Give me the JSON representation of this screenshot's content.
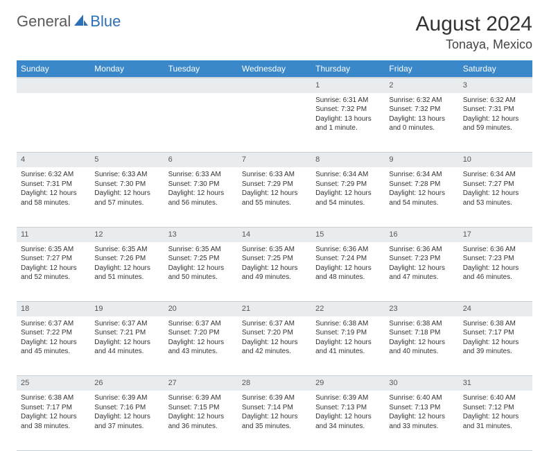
{
  "logo": {
    "text1": "General",
    "text2": "Blue"
  },
  "title": "August 2024",
  "location": "Tonaya, Mexico",
  "colors": {
    "header_bg": "#3a87c9",
    "header_text": "#ffffff",
    "daynum_bg": "#e9ecef",
    "border": "#c8cfd4",
    "logo_gray": "#5a5a5a",
    "logo_blue": "#2d6fb5",
    "page_bg": "#ffffff"
  },
  "day_headers": [
    "Sunday",
    "Monday",
    "Tuesday",
    "Wednesday",
    "Thursday",
    "Friday",
    "Saturday"
  ],
  "weeks": [
    [
      null,
      null,
      null,
      null,
      {
        "n": "1",
        "sr": "Sunrise: 6:31 AM",
        "ss": "Sunset: 7:32 PM",
        "dl": "Daylight: 13 hours and 1 minute."
      },
      {
        "n": "2",
        "sr": "Sunrise: 6:32 AM",
        "ss": "Sunset: 7:32 PM",
        "dl": "Daylight: 13 hours and 0 minutes."
      },
      {
        "n": "3",
        "sr": "Sunrise: 6:32 AM",
        "ss": "Sunset: 7:31 PM",
        "dl": "Daylight: 12 hours and 59 minutes."
      }
    ],
    [
      {
        "n": "4",
        "sr": "Sunrise: 6:32 AM",
        "ss": "Sunset: 7:31 PM",
        "dl": "Daylight: 12 hours and 58 minutes."
      },
      {
        "n": "5",
        "sr": "Sunrise: 6:33 AM",
        "ss": "Sunset: 7:30 PM",
        "dl": "Daylight: 12 hours and 57 minutes."
      },
      {
        "n": "6",
        "sr": "Sunrise: 6:33 AM",
        "ss": "Sunset: 7:30 PM",
        "dl": "Daylight: 12 hours and 56 minutes."
      },
      {
        "n": "7",
        "sr": "Sunrise: 6:33 AM",
        "ss": "Sunset: 7:29 PM",
        "dl": "Daylight: 12 hours and 55 minutes."
      },
      {
        "n": "8",
        "sr": "Sunrise: 6:34 AM",
        "ss": "Sunset: 7:29 PM",
        "dl": "Daylight: 12 hours and 54 minutes."
      },
      {
        "n": "9",
        "sr": "Sunrise: 6:34 AM",
        "ss": "Sunset: 7:28 PM",
        "dl": "Daylight: 12 hours and 54 minutes."
      },
      {
        "n": "10",
        "sr": "Sunrise: 6:34 AM",
        "ss": "Sunset: 7:27 PM",
        "dl": "Daylight: 12 hours and 53 minutes."
      }
    ],
    [
      {
        "n": "11",
        "sr": "Sunrise: 6:35 AM",
        "ss": "Sunset: 7:27 PM",
        "dl": "Daylight: 12 hours and 52 minutes."
      },
      {
        "n": "12",
        "sr": "Sunrise: 6:35 AM",
        "ss": "Sunset: 7:26 PM",
        "dl": "Daylight: 12 hours and 51 minutes."
      },
      {
        "n": "13",
        "sr": "Sunrise: 6:35 AM",
        "ss": "Sunset: 7:25 PM",
        "dl": "Daylight: 12 hours and 50 minutes."
      },
      {
        "n": "14",
        "sr": "Sunrise: 6:35 AM",
        "ss": "Sunset: 7:25 PM",
        "dl": "Daylight: 12 hours and 49 minutes."
      },
      {
        "n": "15",
        "sr": "Sunrise: 6:36 AM",
        "ss": "Sunset: 7:24 PM",
        "dl": "Daylight: 12 hours and 48 minutes."
      },
      {
        "n": "16",
        "sr": "Sunrise: 6:36 AM",
        "ss": "Sunset: 7:23 PM",
        "dl": "Daylight: 12 hours and 47 minutes."
      },
      {
        "n": "17",
        "sr": "Sunrise: 6:36 AM",
        "ss": "Sunset: 7:23 PM",
        "dl": "Daylight: 12 hours and 46 minutes."
      }
    ],
    [
      {
        "n": "18",
        "sr": "Sunrise: 6:37 AM",
        "ss": "Sunset: 7:22 PM",
        "dl": "Daylight: 12 hours and 45 minutes."
      },
      {
        "n": "19",
        "sr": "Sunrise: 6:37 AM",
        "ss": "Sunset: 7:21 PM",
        "dl": "Daylight: 12 hours and 44 minutes."
      },
      {
        "n": "20",
        "sr": "Sunrise: 6:37 AM",
        "ss": "Sunset: 7:20 PM",
        "dl": "Daylight: 12 hours and 43 minutes."
      },
      {
        "n": "21",
        "sr": "Sunrise: 6:37 AM",
        "ss": "Sunset: 7:20 PM",
        "dl": "Daylight: 12 hours and 42 minutes."
      },
      {
        "n": "22",
        "sr": "Sunrise: 6:38 AM",
        "ss": "Sunset: 7:19 PM",
        "dl": "Daylight: 12 hours and 41 minutes."
      },
      {
        "n": "23",
        "sr": "Sunrise: 6:38 AM",
        "ss": "Sunset: 7:18 PM",
        "dl": "Daylight: 12 hours and 40 minutes."
      },
      {
        "n": "24",
        "sr": "Sunrise: 6:38 AM",
        "ss": "Sunset: 7:17 PM",
        "dl": "Daylight: 12 hours and 39 minutes."
      }
    ],
    [
      {
        "n": "25",
        "sr": "Sunrise: 6:38 AM",
        "ss": "Sunset: 7:17 PM",
        "dl": "Daylight: 12 hours and 38 minutes."
      },
      {
        "n": "26",
        "sr": "Sunrise: 6:39 AM",
        "ss": "Sunset: 7:16 PM",
        "dl": "Daylight: 12 hours and 37 minutes."
      },
      {
        "n": "27",
        "sr": "Sunrise: 6:39 AM",
        "ss": "Sunset: 7:15 PM",
        "dl": "Daylight: 12 hours and 36 minutes."
      },
      {
        "n": "28",
        "sr": "Sunrise: 6:39 AM",
        "ss": "Sunset: 7:14 PM",
        "dl": "Daylight: 12 hours and 35 minutes."
      },
      {
        "n": "29",
        "sr": "Sunrise: 6:39 AM",
        "ss": "Sunset: 7:13 PM",
        "dl": "Daylight: 12 hours and 34 minutes."
      },
      {
        "n": "30",
        "sr": "Sunrise: 6:40 AM",
        "ss": "Sunset: 7:13 PM",
        "dl": "Daylight: 12 hours and 33 minutes."
      },
      {
        "n": "31",
        "sr": "Sunrise: 6:40 AM",
        "ss": "Sunset: 7:12 PM",
        "dl": "Daylight: 12 hours and 31 minutes."
      }
    ]
  ]
}
